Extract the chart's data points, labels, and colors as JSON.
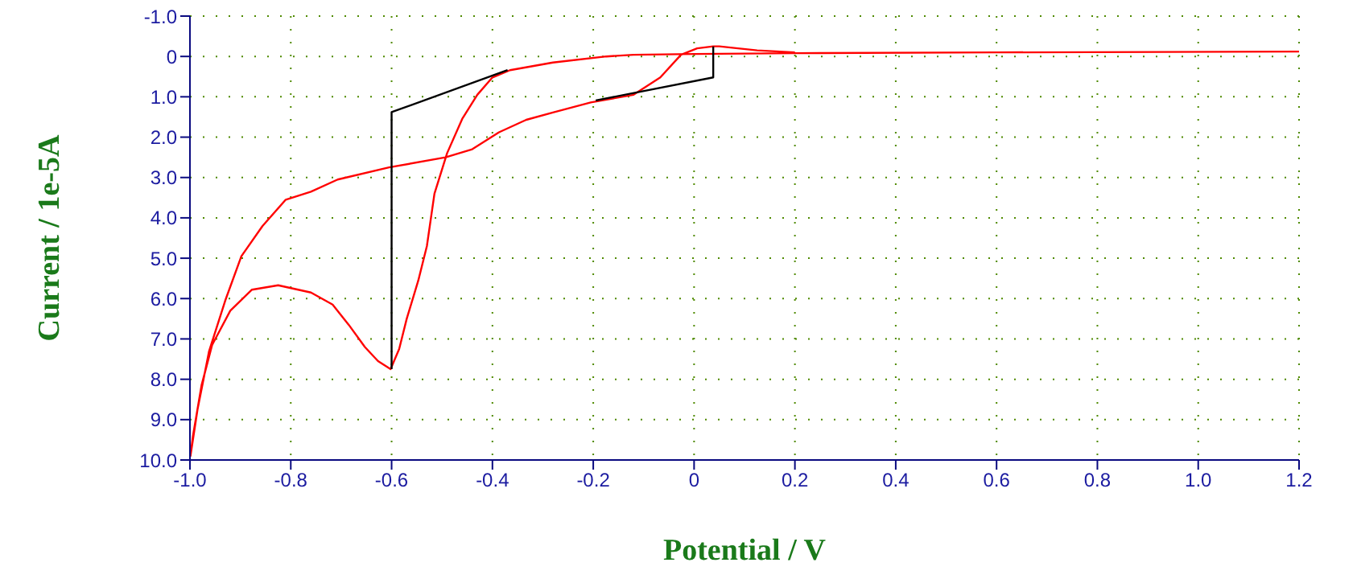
{
  "chart_data": {
    "type": "line",
    "xlabel": "Potential / V",
    "ylabel": "Current / 1e-5A",
    "xlim": [
      -1.0,
      1.2
    ],
    "xticks": [
      {
        "value": -1,
        "label": "-1.0"
      },
      -0.8,
      -0.6,
      -0.4,
      -0.2,
      0,
      0.2,
      0.4,
      0.6,
      0.8,
      {
        "value": 1,
        "label": "1.0"
      },
      1.2
    ],
    "ylim": [
      10,
      -1
    ],
    "yticks": [
      {
        "value": -1,
        "label": "-1.0"
      },
      0,
      {
        "value": 1,
        "label": "1.0"
      },
      {
        "value": 2,
        "label": "2.0"
      },
      {
        "value": 3,
        "label": "3.0"
      },
      {
        "value": 4,
        "label": "4.0"
      },
      {
        "value": 5,
        "label": "5.0"
      },
      {
        "value": 6,
        "label": "6.0"
      },
      {
        "value": 7,
        "label": "7.0"
      },
      {
        "value": 8,
        "label": "8.0"
      },
      {
        "value": 9,
        "label": "9.0"
      },
      {
        "value": 10,
        "label": "10.0"
      }
    ],
    "grid": true,
    "marker": "none",
    "line_style": "solid",
    "series": [
      {
        "color": "#ff0000",
        "x": [
          1.2,
          0.6,
          0.2,
          0,
          -0.12,
          -0.174,
          -0.28,
          -0.365,
          -0.4,
          -0.43,
          -0.46,
          -0.49,
          -0.515,
          -0.53,
          -0.547,
          -0.57,
          -0.585,
          -0.602,
          -0.627,
          -0.653,
          -0.685,
          -0.717,
          -0.76,
          -0.825,
          -0.877,
          -0.92,
          -0.956,
          -0.977,
          -0.994,
          -0.999,
          -0.985,
          -0.962,
          -0.93,
          -0.898,
          -0.856,
          -0.81,
          -0.76,
          -0.707,
          -0.605,
          -0.493,
          -0.44,
          -0.387,
          -0.333,
          -0.28,
          -0.205,
          -0.12,
          -0.067,
          -0.026,
          0.006,
          0.038,
          0.05,
          0.087,
          0.125,
          0.17,
          0.2
        ],
        "values": [
          -0.12,
          -0.1,
          -0.08,
          -0.06,
          -0.04,
          0,
          0.15,
          0.34,
          0.52,
          0.95,
          1.55,
          2.4,
          3.4,
          4.7,
          5.55,
          6.5,
          7.25,
          7.75,
          7.55,
          7.2,
          6.65,
          6.15,
          5.85,
          5.67,
          5.78,
          6.3,
          7.15,
          8.15,
          9.4,
          9.9,
          8.75,
          7.3,
          6.05,
          4.95,
          4.2,
          3.55,
          3.35,
          3.05,
          2.75,
          2.5,
          2.3,
          1.88,
          1.57,
          1.39,
          1.14,
          0.95,
          0.52,
          -0.04,
          -0.2,
          -0.25,
          -0.25,
          -0.2,
          -0.15,
          -0.12,
          -0.1
        ]
      },
      {
        "color": "#000000",
        "x": [
          -0.6,
          -0.6,
          -0.37
        ],
        "values": [
          7.75,
          1.38,
          0.34
        ]
      },
      {
        "color": "#000000",
        "x": [
          -0.195,
          0.038,
          0.038
        ],
        "values": [
          1.09,
          0.52,
          -0.25
        ]
      }
    ]
  }
}
